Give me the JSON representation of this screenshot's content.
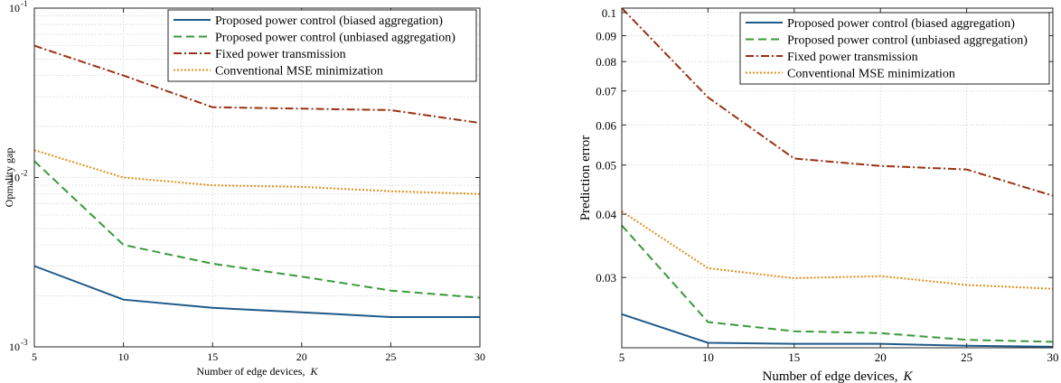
{
  "chart_data": [
    {
      "type": "line",
      "title": "",
      "xlabel": "Number of edge devices,",
      "xlabel_var": "K",
      "ylabel": "Opmality gap",
      "xlim": [
        5,
        30
      ],
      "ylim": [
        0.001,
        0.1
      ],
      "yscale": "log",
      "grid": true,
      "legend_position": "top-right",
      "x": [
        5,
        10,
        15,
        20,
        25,
        30
      ],
      "xticks": [
        "5",
        "10",
        "15",
        "20",
        "25",
        "30"
      ],
      "yticks": [
        {
          "value": 0.001,
          "base": "10",
          "exp": "-3"
        },
        {
          "value": 0.01,
          "base": "10",
          "exp": "-2"
        },
        {
          "value": 0.1,
          "base": "10",
          "exp": "-1"
        }
      ],
      "series": [
        {
          "name": "Proposed power control (biased aggregation)",
          "color": "#1f5a8a",
          "dash": "",
          "values": [
            0.003,
            0.0019,
            0.0017,
            0.0016,
            0.0015,
            0.0015
          ]
        },
        {
          "name": "Proposed power control (unbiased aggregation)",
          "color": "#3a9a3a",
          "dash": "9,5",
          "values": [
            0.0125,
            0.004,
            0.0031,
            0.0026,
            0.00215,
            0.00195
          ]
        },
        {
          "name": "Fixed power transmission",
          "color": "#9a3112",
          "dash": "9,3,2,3",
          "values": [
            0.06,
            0.04,
            0.026,
            0.0255,
            0.025,
            0.021
          ]
        },
        {
          "name": "Conventional MSE minimization",
          "color": "#e0901c",
          "dash": "2,2",
          "values": [
            0.0145,
            0.01,
            0.009,
            0.0088,
            0.0083,
            0.008
          ]
        }
      ]
    },
    {
      "type": "line",
      "title": "",
      "xlabel": "Number of edge devices,",
      "xlabel_var": "K",
      "ylabel": "Prediction error",
      "xlim": [
        5,
        30
      ],
      "ylim": [
        0.0218,
        0.102
      ],
      "yscale": "log",
      "grid": true,
      "legend_position": "top-right",
      "x": [
        5,
        10,
        15,
        20,
        25,
        30
      ],
      "xticks": [
        "5",
        "10",
        "15",
        "20",
        "25",
        "30"
      ],
      "yticks": [
        {
          "value": 0.03,
          "label": "0.03"
        },
        {
          "value": 0.04,
          "label": "0.04"
        },
        {
          "value": 0.05,
          "label": "0.05"
        },
        {
          "value": 0.06,
          "label": "0.06"
        },
        {
          "value": 0.07,
          "label": "0.07"
        },
        {
          "value": 0.08,
          "label": "0.08"
        },
        {
          "value": 0.09,
          "label": "0.09"
        },
        {
          "value": 0.1,
          "label": "0.1"
        }
      ],
      "series": [
        {
          "name": "Proposed power control (biased aggregation)",
          "color": "#1f5a8a",
          "dash": "",
          "values": [
            0.0254,
            0.0223,
            0.0222,
            0.0222,
            0.022,
            0.0219
          ]
        },
        {
          "name": "Proposed power control (unbiased aggregation)",
          "color": "#3a9a3a",
          "dash": "9,5",
          "values": [
            0.038,
            0.0245,
            0.0235,
            0.0233,
            0.0226,
            0.0224
          ]
        },
        {
          "name": "Fixed power transmission",
          "color": "#9a3112",
          "dash": "9,3,2,3",
          "values": [
            0.102,
            0.068,
            0.0515,
            0.0498,
            0.049,
            0.0435
          ]
        },
        {
          "name": "Conventional MSE minimization",
          "color": "#e0901c",
          "dash": "2,2",
          "values": [
            0.0405,
            0.0313,
            0.0299,
            0.0302,
            0.029,
            0.0285
          ]
        }
      ]
    }
  ]
}
